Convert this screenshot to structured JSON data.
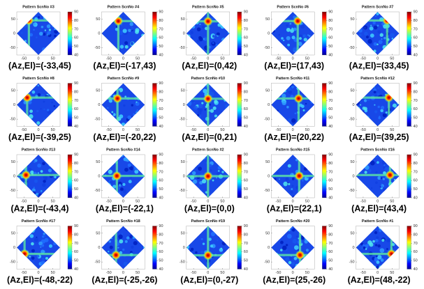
{
  "chart_data": [
    {
      "type": "heatmap",
      "title": "Pattern ScnNo #3",
      "annotation": "(Az,El)=(-33,45)",
      "xlim": [
        -75,
        75
      ],
      "ylim": [
        -75,
        75
      ],
      "xticks": [
        -50,
        0,
        50
      ],
      "yticks": [
        -50,
        0,
        50
      ],
      "colorbar_lim": [
        40,
        90
      ],
      "colorbar_ticks": [
        40,
        50,
        60,
        70,
        80,
        90
      ]
    },
    {
      "type": "heatmap",
      "title": "Pattern ScnNo #4",
      "annotation": "(Az,El)=(-17,43)",
      "xlim": [
        -75,
        75
      ],
      "ylim": [
        -75,
        75
      ],
      "xticks": [
        -50,
        0,
        50
      ],
      "yticks": [
        -50,
        0,
        50
      ],
      "colorbar_lim": [
        40,
        90
      ],
      "colorbar_ticks": [
        40,
        50,
        60,
        70,
        80,
        90
      ]
    },
    {
      "type": "heatmap",
      "title": "Pattern ScnNo #5",
      "annotation": "(Az,El)=(0,42)",
      "xlim": [
        -75,
        75
      ],
      "ylim": [
        -75,
        75
      ],
      "xticks": [
        -50,
        0,
        50
      ],
      "yticks": [
        -50,
        0,
        50
      ],
      "colorbar_lim": [
        40,
        90
      ],
      "colorbar_ticks": [
        40,
        50,
        60,
        70,
        80,
        90
      ]
    },
    {
      "type": "heatmap",
      "title": "Pattern ScnNo #6",
      "annotation": "(Az,El)=(17,43)",
      "xlim": [
        -75,
        75
      ],
      "ylim": [
        -75,
        75
      ],
      "xticks": [
        -50,
        0,
        50
      ],
      "yticks": [
        -50,
        0,
        50
      ],
      "colorbar_lim": [
        40,
        90
      ],
      "colorbar_ticks": [
        40,
        50,
        60,
        70,
        80,
        90
      ]
    },
    {
      "type": "heatmap",
      "title": "Pattern ScnNo #7",
      "annotation": "(Az,El)=(33,45)",
      "xlim": [
        -75,
        75
      ],
      "ylim": [
        -75,
        75
      ],
      "xticks": [
        -50,
        0,
        50
      ],
      "yticks": [
        -50,
        0,
        50
      ],
      "colorbar_lim": [
        40,
        90
      ],
      "colorbar_ticks": [
        40,
        50,
        60,
        70,
        80,
        90
      ]
    },
    {
      "type": "heatmap",
      "title": "Pattern ScnNo #8",
      "annotation": "(Az,El)=(-39,25)",
      "xlim": [
        -75,
        75
      ],
      "ylim": [
        -75,
        75
      ],
      "xticks": [
        -50,
        0,
        50
      ],
      "yticks": [
        -50,
        0,
        50
      ],
      "colorbar_lim": [
        40,
        90
      ],
      "colorbar_ticks": [
        40,
        50,
        60,
        70,
        80,
        90
      ]
    },
    {
      "type": "heatmap",
      "title": "Pattern ScnNo #9",
      "annotation": "(Az,El)=(-20,22)",
      "xlim": [
        -75,
        75
      ],
      "ylim": [
        -75,
        75
      ],
      "xticks": [
        -50,
        0,
        50
      ],
      "yticks": [
        -50,
        0,
        50
      ],
      "colorbar_lim": [
        40,
        90
      ],
      "colorbar_ticks": [
        40,
        50,
        60,
        70,
        80,
        90
      ]
    },
    {
      "type": "heatmap",
      "title": "Pattern ScnNo #10",
      "annotation": "(Az,El)=(0,21)",
      "xlim": [
        -75,
        75
      ],
      "ylim": [
        -75,
        75
      ],
      "xticks": [
        -50,
        0,
        50
      ],
      "yticks": [
        -50,
        0,
        50
      ],
      "colorbar_lim": [
        40,
        90
      ],
      "colorbar_ticks": [
        40,
        50,
        60,
        70,
        80,
        90
      ]
    },
    {
      "type": "heatmap",
      "title": "Pattern ScnNo #11",
      "annotation": "(Az,El)=(20,22)",
      "xlim": [
        -75,
        75
      ],
      "ylim": [
        -75,
        75
      ],
      "xticks": [
        -50,
        0,
        50
      ],
      "yticks": [
        -50,
        0,
        50
      ],
      "colorbar_lim": [
        40,
        90
      ],
      "colorbar_ticks": [
        40,
        50,
        60,
        70,
        80,
        90
      ]
    },
    {
      "type": "heatmap",
      "title": "Pattern ScnNo #12",
      "annotation": "(Az,El)=(39,25)",
      "xlim": [
        -75,
        75
      ],
      "ylim": [
        -75,
        75
      ],
      "xticks": [
        -50,
        0,
        50
      ],
      "yticks": [
        -50,
        0,
        50
      ],
      "colorbar_lim": [
        40,
        90
      ],
      "colorbar_ticks": [
        40,
        50,
        60,
        70,
        80,
        90
      ]
    },
    {
      "type": "heatmap",
      "title": "Pattern ScnNo #13",
      "annotation": "(Az,El)=(-43,4)",
      "xlim": [
        -75,
        75
      ],
      "ylim": [
        -75,
        75
      ],
      "xticks": [
        -50,
        0,
        50
      ],
      "yticks": [
        -50,
        0,
        50
      ],
      "colorbar_lim": [
        40,
        90
      ],
      "colorbar_ticks": [
        40,
        50,
        60,
        70,
        80,
        90
      ]
    },
    {
      "type": "heatmap",
      "title": "Pattern ScnNo #14",
      "annotation": "(Az,El)=(-22,1)",
      "xlim": [
        -75,
        75
      ],
      "ylim": [
        -75,
        75
      ],
      "xticks": [
        -50,
        0,
        50
      ],
      "yticks": [
        -50,
        0,
        50
      ],
      "colorbar_lim": [
        40,
        90
      ],
      "colorbar_ticks": [
        40,
        50,
        60,
        70,
        80,
        90
      ]
    },
    {
      "type": "heatmap",
      "title": "Pattern ScnNo #2",
      "annotation": "(Az,El)=(0,0)",
      "xlim": [
        -75,
        75
      ],
      "ylim": [
        -75,
        75
      ],
      "xticks": [
        -50,
        0,
        50
      ],
      "yticks": [
        -50,
        0,
        50
      ],
      "colorbar_lim": [
        40,
        90
      ],
      "colorbar_ticks": [
        40,
        50,
        60,
        70,
        80,
        90
      ]
    },
    {
      "type": "heatmap",
      "title": "Pattern ScnNo #15",
      "annotation": "(Az,El)=(22,1)",
      "xlim": [
        -75,
        75
      ],
      "ylim": [
        -75,
        75
      ],
      "xticks": [
        -50,
        0,
        50
      ],
      "yticks": [
        -50,
        0,
        50
      ],
      "colorbar_lim": [
        40,
        90
      ],
      "colorbar_ticks": [
        40,
        50,
        60,
        70,
        80,
        90
      ]
    },
    {
      "type": "heatmap",
      "title": "Pattern ScnNo #16",
      "annotation": "(Az,El)=(43,4)",
      "xlim": [
        -75,
        75
      ],
      "ylim": [
        -75,
        75
      ],
      "xticks": [
        -50,
        0,
        50
      ],
      "yticks": [
        -50,
        0,
        50
      ],
      "colorbar_lim": [
        40,
        90
      ],
      "colorbar_ticks": [
        40,
        50,
        60,
        70,
        80,
        90
      ]
    },
    {
      "type": "heatmap",
      "title": "Pattern ScnNo #17",
      "annotation": "(Az,El)=(-48,-22)",
      "xlim": [
        -75,
        75
      ],
      "ylim": [
        -75,
        75
      ],
      "xticks": [
        -50,
        0,
        50
      ],
      "yticks": [
        -50,
        0,
        50
      ],
      "colorbar_lim": [
        40,
        90
      ],
      "colorbar_ticks": [
        40,
        50,
        60,
        70,
        80,
        90
      ]
    },
    {
      "type": "heatmap",
      "title": "Pattern ScnNo #18",
      "annotation": "(Az,El)=(-25,-26)",
      "xlim": [
        -75,
        75
      ],
      "ylim": [
        -75,
        75
      ],
      "xticks": [
        -50,
        0,
        50
      ],
      "yticks": [
        -50,
        0,
        50
      ],
      "colorbar_lim": [
        40,
        90
      ],
      "colorbar_ticks": [
        40,
        50,
        60,
        70,
        80,
        90
      ]
    },
    {
      "type": "heatmap",
      "title": "Pattern ScnNo #19",
      "annotation": "(Az,El)=(0,-27)",
      "xlim": [
        -75,
        75
      ],
      "ylim": [
        -75,
        75
      ],
      "xticks": [
        -50,
        0,
        50
      ],
      "yticks": [
        -50,
        0,
        50
      ],
      "colorbar_lim": [
        40,
        90
      ],
      "colorbar_ticks": [
        40,
        50,
        60,
        70,
        80,
        90
      ]
    },
    {
      "type": "heatmap",
      "title": "Pattern ScnNo #20",
      "annotation": "(Az,El)=(25,-26)",
      "xlim": [
        -75,
        75
      ],
      "ylim": [
        -75,
        75
      ],
      "xticks": [
        -50,
        0,
        50
      ],
      "yticks": [
        -50,
        0,
        50
      ],
      "colorbar_lim": [
        40,
        90
      ],
      "colorbar_ticks": [
        40,
        50,
        60,
        70,
        80,
        90
      ]
    },
    {
      "type": "heatmap",
      "title": "Pattern ScnNo #1",
      "annotation": "(Az,El)=(48,-22)",
      "xlim": [
        -75,
        75
      ],
      "ylim": [
        -75,
        75
      ],
      "xticks": [
        -50,
        0,
        50
      ],
      "yticks": [
        -50,
        0,
        50
      ],
      "colorbar_lim": [
        40,
        90
      ],
      "colorbar_ticks": [
        40,
        50,
        60,
        70,
        80,
        90
      ]
    }
  ]
}
